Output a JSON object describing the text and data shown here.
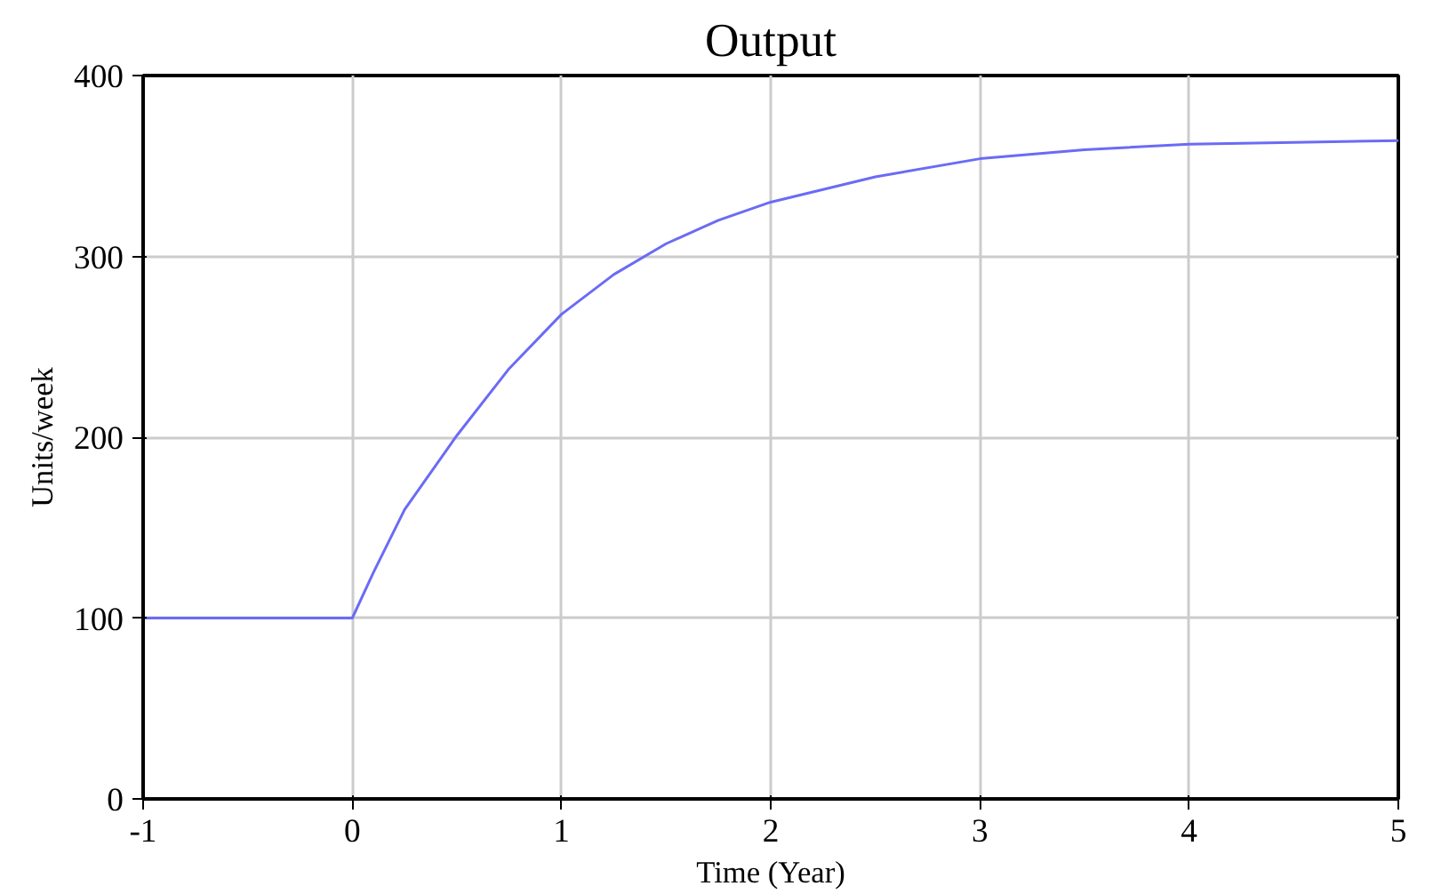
{
  "chart_data": {
    "type": "line",
    "title": "Output",
    "xlabel": "Time (Year)",
    "ylabel": "Units/week",
    "x": [
      -1,
      0,
      0.1,
      0.25,
      0.5,
      0.75,
      1,
      1.25,
      1.5,
      1.75,
      2,
      2.5,
      3,
      3.5,
      4,
      4.5,
      5
    ],
    "series": [
      {
        "color": "#6b6bf5",
        "values": [
          100,
          100,
          125,
          160,
          201,
          238,
          268,
          290,
          307,
          320,
          330,
          344,
          354,
          359,
          362,
          363,
          364
        ]
      }
    ],
    "xlim": [
      -1,
      5
    ],
    "xticks": [
      -1,
      0,
      1,
      2,
      3,
      4,
      5
    ],
    "ylim": [
      0,
      400
    ],
    "yticks": [
      0,
      100,
      200,
      300,
      400
    ],
    "grid": true,
    "marker": "none",
    "line_style": "solid"
  }
}
